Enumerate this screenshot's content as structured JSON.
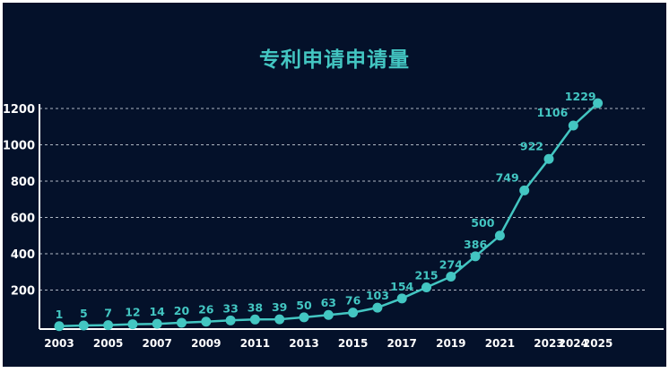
{
  "chart_data": {
    "type": "line",
    "title": "专利申请申请量",
    "xlabel": "",
    "ylabel": "",
    "x": [
      2003,
      2004,
      2005,
      2006,
      2007,
      2008,
      2009,
      2010,
      2011,
      2012,
      2013,
      2014,
      2015,
      2016,
      2017,
      2018,
      2019,
      2020,
      2021,
      2022,
      2023,
      2024,
      2025
    ],
    "x_tick_labels": [
      "2003",
      "2005",
      "2007",
      "2009",
      "2011",
      "2013",
      "2015",
      "2017",
      "2019",
      "2021",
      "2023",
      "2024",
      "2025"
    ],
    "y_tick_labels": [
      "200",
      "400",
      "600",
      "800",
      "1000",
      "1200"
    ],
    "series": [
      {
        "values": [
          1,
          5,
          7,
          12,
          14,
          20,
          26,
          33,
          38,
          39,
          50,
          63,
          76,
          103,
          154,
          215,
          274,
          386,
          500,
          749,
          922,
          1106,
          1229
        ],
        "data_labels": [
          "1",
          "5",
          "7",
          "12",
          "14",
          "20",
          "26",
          "33",
          "38",
          "39",
          "50",
          "63",
          "76",
          "103",
          "154",
          "215",
          "274",
          "386",
          "500",
          "749",
          "922",
          "1106",
          "1229"
        ]
      }
    ],
    "ylim": [
      0,
      1250
    ],
    "grid": true,
    "grid_style": "dashed-horizontal",
    "colors": {
      "background": "#04112a",
      "line": "#43c6c2",
      "marker": "#43c6c2",
      "label": "#43c6c2",
      "axis": "#ffffff",
      "grid": "#cfd6e0"
    }
  }
}
